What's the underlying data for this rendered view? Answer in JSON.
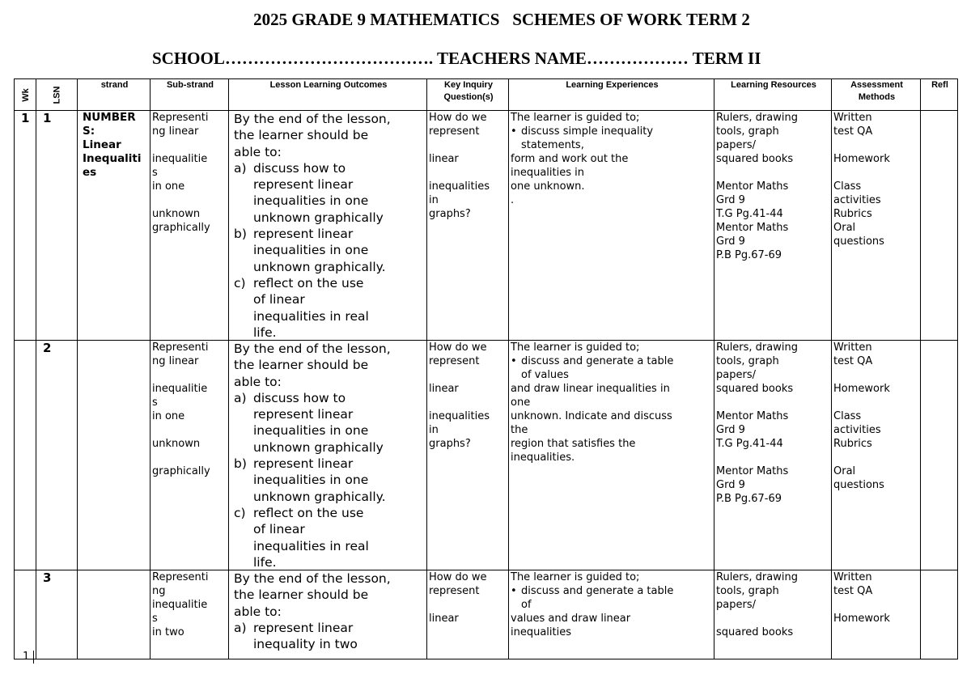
{
  "header": {
    "title": "2025 GRADE 9 MATHEMATICS   SCHEMES OF WORK TERM 2",
    "subtitle": "SCHOOL………………………………. TEACHERS NAME……………… TERM II"
  },
  "table": {
    "columns": [
      "Wk",
      "LSN",
      "strand",
      "Sub-strand",
      "Lesson Learning Outcomes",
      "Key Inquiry Question(s)",
      "Learning Experiences",
      "Learning Resources",
      "Assessment Methods",
      "Refl"
    ],
    "rows": [
      {
        "wk": "1",
        "lsn": "1",
        "strand": [
          {
            "lines": [
              "NUMBER",
              "S:",
              "Linear",
              "Inequaliti",
              "es"
            ]
          }
        ],
        "substrand": [
          {
            "lines": [
              "Representi",
              "ng linear"
            ]
          },
          {
            "lines": [
              "inequalitie",
              "s",
              "in one"
            ]
          },
          {
            "lines": [
              "unknown",
              "graphically"
            ]
          }
        ],
        "outcomes": [
          {
            "lines": [
              "By the end of the lesson,",
              "the learner should be",
              "able to:"
            ]
          },
          {
            "marker": "a)",
            "lines": [
              "discuss how to",
              "represent linear",
              "inequalities in one",
              "unknown graphically"
            ]
          },
          {
            "marker": "b)",
            "lines": [
              "represent linear",
              "inequalities in one",
              "unknown graphically."
            ]
          },
          {
            "marker": "c)",
            "lines": [
              "reflect on the use",
              "of linear",
              "inequalities in real",
              "life."
            ]
          }
        ],
        "key_questions": [
          {
            "lines": [
              "How do we",
              "represent"
            ]
          },
          {
            "lines": [
              "linear"
            ]
          },
          {
            "lines": [
              "inequalities",
              "in",
              "graphs?"
            ]
          }
        ],
        "experiences": [
          {
            "lines": [
              "The learner is guided to;"
            ]
          },
          {
            "marker": "•",
            "lines": [
              "discuss simple inequality",
              "statements,"
            ]
          },
          {
            "lines": [
              "form and work out the",
              "inequalities in",
              "one unknown."
            ]
          },
          {
            "lines": [
              "."
            ]
          }
        ],
        "resources": [
          {
            "lines": [
              "Rulers, drawing",
              "tools, graph",
              "papers/",
              "squared books"
            ]
          },
          {
            "lines": [
              "Mentor Maths",
              "Grd 9",
              "T.G Pg.41-44",
              "Mentor Maths",
              "Grd 9",
              "P.B Pg.67-69"
            ]
          }
        ],
        "assessment": [
          {
            "lines": [
              "Written",
              "test QA"
            ]
          },
          {
            "lines": [
              "Homework"
            ]
          },
          {
            "lines": [
              "Class",
              "activities",
              "Rubrics",
              "Oral",
              "questions"
            ]
          }
        ]
      },
      {
        "lsn": "2",
        "substrand": [
          {
            "lines": [
              "Representi",
              "ng linear"
            ]
          },
          {
            "lines": [
              "inequalitie",
              "s",
              "in one"
            ]
          },
          {
            "lines": [
              "unknown"
            ]
          },
          {
            "lines": [
              "graphically"
            ]
          }
        ],
        "outcomes": [
          {
            "lines": [
              "By the end of the lesson,",
              "the learner should be",
              "able to:"
            ]
          },
          {
            "marker": "a)",
            "lines": [
              "discuss how to",
              "represent linear",
              "inequalities in one",
              "unknown graphically"
            ]
          },
          {
            "marker": "b)",
            "lines": [
              "represent linear",
              "inequalities in one",
              "unknown graphically."
            ]
          },
          {
            "marker": "c)",
            "lines": [
              "reflect on the use",
              "of linear",
              "inequalities in real",
              "life."
            ]
          }
        ],
        "key_questions": [
          {
            "lines": [
              "How do we",
              "represent"
            ]
          },
          {
            "lines": [
              "linear"
            ]
          },
          {
            "lines": [
              "inequalities",
              "in",
              "graphs?"
            ]
          }
        ],
        "experiences": [
          {
            "lines": [
              "The learner is guided to;"
            ]
          },
          {
            "marker": "•",
            "lines": [
              "discuss and generate a table",
              "of values"
            ]
          },
          {
            "lines": [
              "and draw linear inequalities in",
              "one",
              "unknown. Indicate and discuss",
              "the",
              "region that satisfies the",
              "inequalities."
            ]
          }
        ],
        "resources": [
          {
            "lines": [
              "Rulers, drawing",
              "tools, graph",
              "papers/",
              "squared books"
            ]
          },
          {
            "lines": [
              "Mentor Maths",
              "Grd 9",
              "T.G Pg.41-44"
            ]
          },
          {
            "lines": [
              "Mentor Maths",
              "Grd 9",
              "P.B Pg.67-69"
            ]
          }
        ],
        "assessment": [
          {
            "lines": [
              "Written",
              "test QA"
            ]
          },
          {
            "lines": [
              "Homework"
            ]
          },
          {
            "lines": [
              "Class",
              "activities",
              "Rubrics"
            ]
          },
          {
            "lines": [
              "Oral",
              "questions"
            ]
          }
        ]
      },
      {
        "lsn": "3",
        "substrand": [
          {
            "lines": [
              "Representi",
              "ng",
              "inequalitie",
              "s",
              "in two"
            ]
          }
        ],
        "outcomes": [
          {
            "lines": [
              "By the end of the lesson,",
              "the learner should be",
              "able to:"
            ]
          },
          {
            "marker": "a)",
            "lines": [
              "represent linear",
              "inequality in two"
            ]
          }
        ],
        "key_questions": [
          {
            "lines": [
              "How do we",
              "represent"
            ]
          },
          {
            "lines": [
              "linear"
            ]
          }
        ],
        "experiences": [
          {
            "lines": [
              "The learner is guided to;"
            ]
          },
          {
            "marker": "•",
            "lines": [
              "discuss and generate a table",
              "of"
            ]
          },
          {
            "lines": [
              "values and draw linear",
              "inequalities"
            ]
          }
        ],
        "resources": [
          {
            "lines": [
              "Rulers, drawing",
              "tools, graph",
              "papers/"
            ]
          },
          {
            "lines": [
              "squared books"
            ]
          }
        ],
        "assessment": [
          {
            "lines": [
              "Written",
              "test QA"
            ]
          },
          {
            "lines": [
              "Homework"
            ]
          }
        ]
      }
    ]
  },
  "footer": {
    "page_number": "1"
  }
}
